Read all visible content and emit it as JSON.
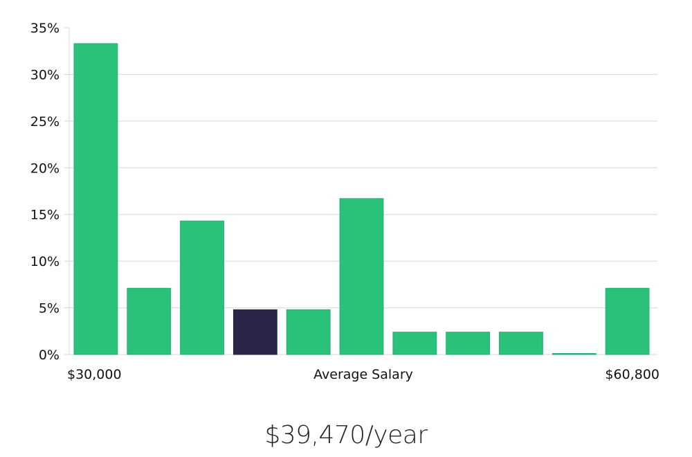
{
  "chart_data": {
    "type": "bar",
    "title": "",
    "xlabel": "Average Salary",
    "ylabel": "",
    "x_min_label": "$30,000",
    "x_max_label": "$60,800",
    "ylim": [
      0,
      35
    ],
    "y_ticks": [
      0,
      5,
      10,
      15,
      20,
      25,
      30,
      35
    ],
    "y_tick_suffix": "%",
    "grid": true,
    "values": [
      33.3,
      7.1,
      14.3,
      4.8,
      4.8,
      16.7,
      2.4,
      2.4,
      2.4,
      0,
      7.1
    ],
    "highlight_index": 3,
    "colors": {
      "bar": "#2ac17a",
      "bar_stroke": "#24b06e",
      "highlight": "#2a2649",
      "grid": "#d8d8d8",
      "axis": "#d8d8d8"
    }
  },
  "salary": {
    "value": "$39,470/year"
  }
}
